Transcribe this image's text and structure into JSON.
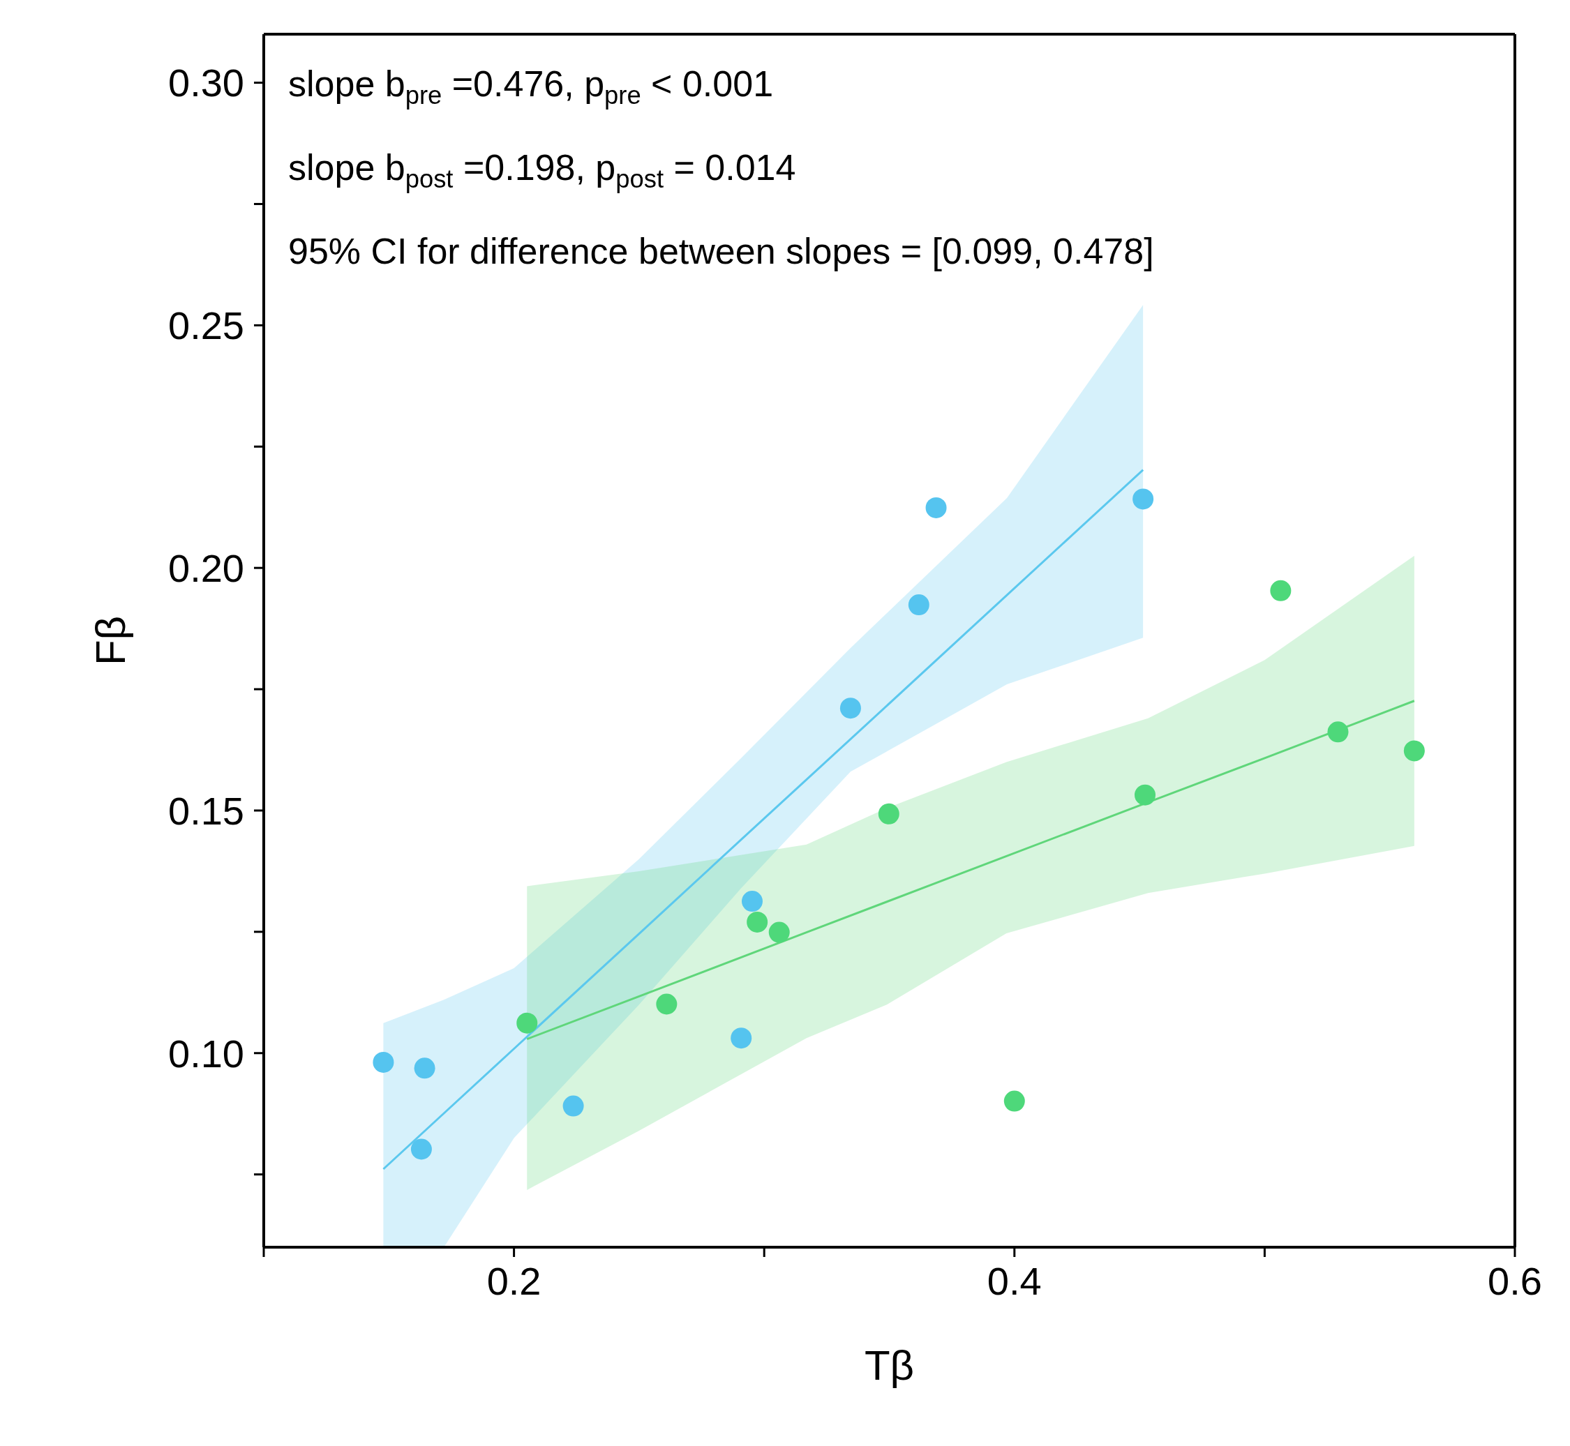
{
  "chart_data": {
    "type": "scatter",
    "xlabel": "Tβ",
    "ylabel": "Fβ",
    "annotations": [
      "slope b$_{pre}$ =0.476, p$_{pre}$ < 0.001",
      "slope b$_{post}$ =0.198, p$_{post}$ = 0.014",
      "95% CI for difference between slopes = [0.099, 0.478]"
    ],
    "xlim": [
      0.1,
      0.6
    ],
    "ylim": [
      0.06,
      0.31
    ],
    "xticks": [
      {
        "value": 0.1,
        "label": null
      },
      0.2,
      {
        "value": 0.3,
        "label": null
      },
      0.4,
      {
        "value": 0.5,
        "label": null
      },
      0.6
    ],
    "yticks": [
      {
        "value": 0.075,
        "label": null
      },
      {
        "value": 0.1,
        "label": "0.10"
      },
      {
        "value": 0.125,
        "label": null
      },
      0.15,
      {
        "value": 0.175,
        "label": null
      },
      {
        "value": 0.2,
        "label": "0.20"
      },
      {
        "value": 0.225,
        "label": null
      },
      0.25,
      {
        "value": 0.275,
        "label": null
      },
      {
        "value": 0.3,
        "label": "0.30"
      }
    ],
    "grid": false,
    "marker": "circle",
    "series": [
      {
        "type": "line",
        "marker": "none",
        "color": "#5bc8ee",
        "line_style": "solid",
        "x": [
          0.1478,
          0.172,
          0.2,
          0.25,
          0.2908,
          0.3345,
          0.397,
          0.4514
        ],
        "values": [
          0.0761,
          0.0876,
          0.1009,
          0.1246,
          0.144,
          0.1647,
          0.1944,
          0.2202
        ],
        "lower": [
          0.06,
          0.06,
          0.0825,
          0.11,
          0.134,
          0.158,
          0.176,
          0.1856
        ],
        "upper": [
          0.1062,
          0.111,
          0.1175,
          0.14,
          0.1608,
          0.1835,
          0.2144,
          0.2542
        ]
      },
      {
        "type": "line",
        "marker": "none",
        "color": "#5fd67a",
        "line_style": "solid",
        "x": [
          0.2052,
          0.25,
          0.3169,
          0.349,
          0.3968,
          0.4534,
          0.5,
          0.5598
        ],
        "values": [
          0.1029,
          0.1117,
          0.1249,
          0.1312,
          0.1406,
          0.1517,
          0.1608,
          0.1726
        ],
        "lower": [
          0.0718,
          0.084,
          0.1031,
          0.11,
          0.1247,
          0.133,
          0.137,
          0.1427
        ],
        "upper": [
          0.1344,
          0.1375,
          0.143,
          0.1505,
          0.16,
          0.169,
          0.181,
          0.2025
        ]
      },
      {
        "color": "#55c4ef",
        "x": [
          0.1478,
          0.1643,
          0.163,
          0.2237,
          0.2908,
          0.2952,
          0.3345,
          0.3618,
          0.3687,
          0.4514
        ],
        "values": [
          0.0981,
          0.0969,
          0.0802,
          0.0891,
          0.1031,
          0.1313,
          0.1711,
          0.1924,
          0.2124,
          0.2142
        ]
      },
      {
        "color": "#4ed87a",
        "x": [
          0.2052,
          0.261,
          0.2972,
          0.306,
          0.3498,
          0.4,
          0.4522,
          0.5064,
          0.5293,
          0.5598
        ],
        "values": [
          0.1062,
          0.1101,
          0.127,
          0.1249,
          0.1493,
          0.0901,
          0.1532,
          0.1953,
          0.1662,
          0.1623
        ]
      }
    ]
  }
}
